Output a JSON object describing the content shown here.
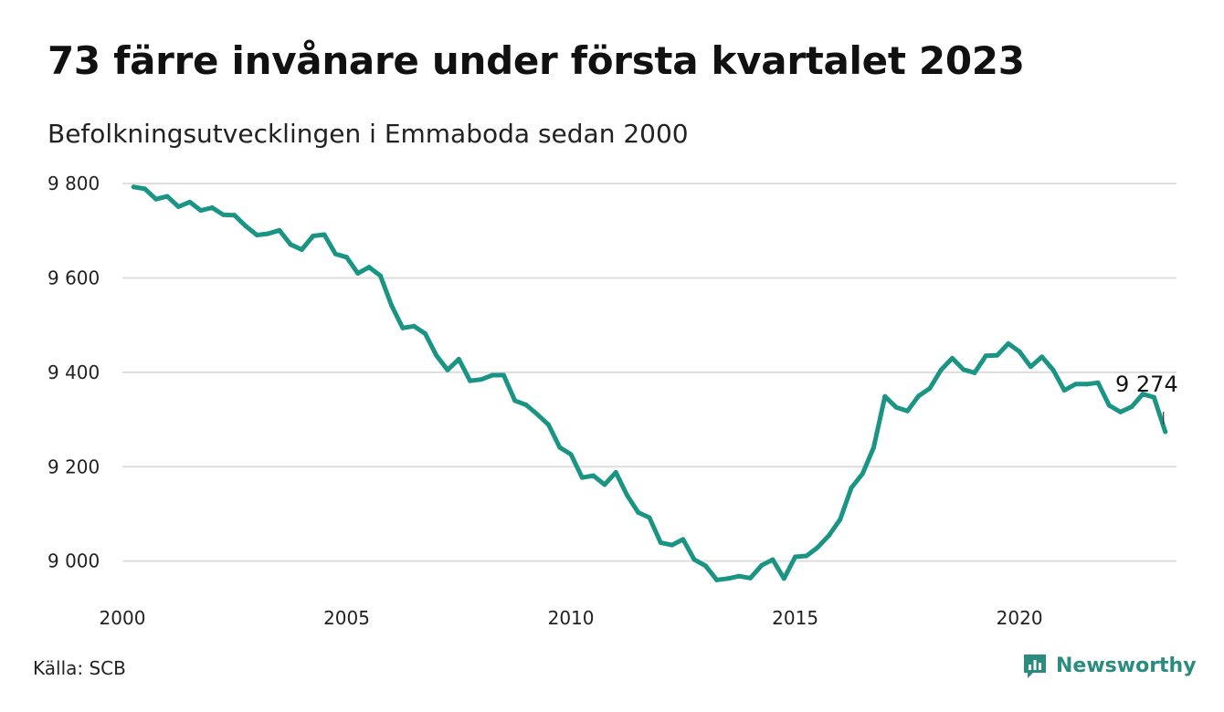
{
  "title": "73 färre invånare under första kvartalet 2023",
  "subtitle": "Befolkningsutvecklingen i Emmaboda sedan 2000",
  "source": "Källa: SCB",
  "brand": {
    "name": "Newsworthy",
    "icon": "bar-chart-icon",
    "color": "#2a8c7e"
  },
  "chart_data": {
    "type": "line",
    "line_color": "#1a9483",
    "grid": true,
    "ylim": [
      8920,
      9810
    ],
    "xlim": [
      2000,
      2023.5
    ],
    "yticks": [
      9000,
      9200,
      9400,
      9600,
      9800
    ],
    "ytick_labels": [
      "9 000",
      "9 200",
      "9 400",
      "9 600",
      "9 800"
    ],
    "xticks": [
      2000,
      2005,
      2010,
      2015,
      2020
    ],
    "xtick_labels": [
      "2000",
      "2005",
      "2010",
      "2015",
      "2020"
    ],
    "end_label": "9 274",
    "x": [
      2000.25,
      2000.5,
      2000.75,
      2001.0,
      2001.25,
      2001.5,
      2001.75,
      2002.0,
      2002.25,
      2002.5,
      2002.75,
      2003.0,
      2003.25,
      2003.5,
      2003.75,
      2004.0,
      2004.25,
      2004.5,
      2004.75,
      2005.0,
      2005.25,
      2005.5,
      2005.75,
      2006.0,
      2006.25,
      2006.5,
      2006.75,
      2007.0,
      2007.25,
      2007.5,
      2007.75,
      2008.0,
      2008.25,
      2008.5,
      2008.75,
      2009.0,
      2009.25,
      2009.5,
      2009.75,
      2010.0,
      2010.25,
      2010.5,
      2010.75,
      2011.0,
      2011.25,
      2011.5,
      2011.75,
      2012.0,
      2012.25,
      2012.5,
      2012.75,
      2013.0,
      2013.25,
      2013.5,
      2013.75,
      2014.0,
      2014.25,
      2014.5,
      2014.75,
      2015.0,
      2015.25,
      2015.5,
      2015.75,
      2016.0,
      2016.25,
      2016.5,
      2016.75,
      2017.0,
      2017.25,
      2017.5,
      2017.75,
      2018.0,
      2018.25,
      2018.5,
      2018.75,
      2019.0,
      2019.25,
      2019.5,
      2019.75,
      2020.0,
      2020.25,
      2020.5,
      2020.75,
      2021.0,
      2021.25,
      2021.5,
      2021.75,
      2022.0,
      2022.25,
      2022.5,
      2022.75,
      2023.0,
      2023.25
    ],
    "y": [
      9793,
      9789,
      9767,
      9773,
      9751,
      9761,
      9743,
      9749,
      9734,
      9733,
      9710,
      9691,
      9694,
      9701,
      9671,
      9660,
      9689,
      9692,
      9651,
      9644,
      9610,
      9623,
      9605,
      9542,
      9494,
      9498,
      9482,
      9436,
      9405,
      9428,
      9382,
      9385,
      9394,
      9394,
      9340,
      9331,
      9311,
      9289,
      9241,
      9226,
      9177,
      9181,
      9162,
      9188,
      9140,
      9103,
      9092,
      9039,
      9034,
      9046,
      9003,
      8990,
      8960,
      8963,
      8968,
      8964,
      8991,
      9003,
      8963,
      9009,
      9011,
      9029,
      9054,
      9088,
      9155,
      9185,
      9241,
      9349,
      9326,
      9318,
      9350,
      9366,
      9405,
      9430,
      9406,
      9399,
      9435,
      9436,
      9461,
      9444,
      9412,
      9433,
      9405,
      9362,
      9375,
      9375,
      9378,
      9330,
      9316,
      9327,
      9354,
      9347,
      9274
    ]
  }
}
